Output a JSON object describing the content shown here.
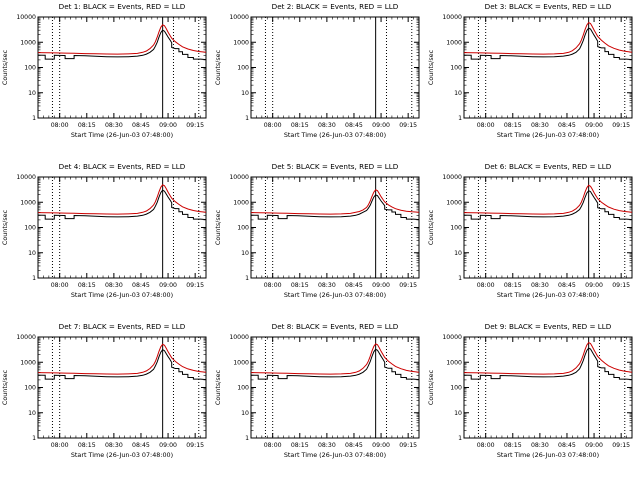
{
  "page": {
    "background": "#ffffff",
    "description": "3x3 grid of detector count-rate light curves, log y-axis, black Events and red LLD traces with a flare peak near 09:00"
  },
  "chart_data": {
    "type": "line",
    "grid": "3x3",
    "title": "",
    "ylabel": "Counts/sec",
    "xlabel": "Start Time (26-Jun-03 07:48:00)",
    "colors": {
      "events": "#000000",
      "lld": "#cc0000",
      "axis": "#000000"
    },
    "x_axis": {
      "start_minute": 0,
      "end_minute": 93,
      "tick_minutes": [
        12,
        27,
        42,
        57,
        72,
        87
      ],
      "tick_labels": [
        "08:00",
        "08:15",
        "08:30",
        "08:45",
        "09:00",
        "09:15"
      ]
    },
    "y_axis": {
      "scale": "log",
      "ylim": [
        1,
        10000
      ],
      "tick_values": [
        1,
        10,
        100,
        1000,
        10000
      ],
      "tick_labels": [
        "1",
        "10",
        "100",
        "1000",
        "10000"
      ]
    },
    "vlines": [
      {
        "minute": 8,
        "style": "dotted"
      },
      {
        "minute": 12,
        "style": "dotted"
      },
      {
        "minute": 69,
        "style": "solid"
      },
      {
        "minute": 75,
        "style": "dotted"
      },
      {
        "minute": 89,
        "style": "dotted"
      }
    ],
    "series_library": {
      "events": {
        "name": "Events",
        "color": "#000000",
        "points": [
          [
            0,
            310
          ],
          [
            3,
            305
          ],
          [
            4,
            305
          ],
          [
            4,
            215
          ],
          [
            9,
            215
          ],
          [
            9,
            305
          ],
          [
            14,
            300
          ],
          [
            15,
            300
          ],
          [
            15,
            225
          ],
          [
            20,
            225
          ],
          [
            20,
            300
          ],
          [
            26,
            290
          ],
          [
            32,
            278
          ],
          [
            38,
            268
          ],
          [
            44,
            262
          ],
          [
            50,
            268
          ],
          [
            55,
            282
          ],
          [
            58,
            305
          ],
          [
            60,
            340
          ],
          [
            62,
            400
          ],
          [
            64,
            520
          ],
          [
            65,
            700
          ],
          [
            66,
            1000
          ],
          [
            67,
            1600
          ],
          [
            68,
            2400
          ],
          [
            69,
            3000
          ],
          [
            70,
            2750
          ],
          [
            71,
            2100
          ],
          [
            72,
            1600
          ],
          [
            73,
            1250
          ],
          [
            74,
            950
          ],
          [
            74,
            620
          ],
          [
            76,
            560
          ],
          [
            78,
            560
          ],
          [
            78,
            420
          ],
          [
            80,
            420
          ],
          [
            80,
            330
          ],
          [
            83,
            330
          ],
          [
            83,
            250
          ],
          [
            86,
            250
          ],
          [
            86,
            215
          ],
          [
            90,
            215
          ],
          [
            93,
            205
          ]
        ]
      },
      "lld": {
        "name": "LLD",
        "color": "#cc0000",
        "points": [
          [
            0,
            390
          ],
          [
            5,
            385
          ],
          [
            10,
            378
          ],
          [
            15,
            372
          ],
          [
            20,
            365
          ],
          [
            26,
            356
          ],
          [
            32,
            348
          ],
          [
            38,
            342
          ],
          [
            44,
            338
          ],
          [
            50,
            345
          ],
          [
            55,
            362
          ],
          [
            58,
            400
          ],
          [
            60,
            450
          ],
          [
            62,
            560
          ],
          [
            64,
            780
          ],
          [
            65,
            1050
          ],
          [
            66,
            1600
          ],
          [
            67,
            2600
          ],
          [
            68,
            3900
          ],
          [
            69,
            4900
          ],
          [
            70,
            4500
          ],
          [
            71,
            3400
          ],
          [
            72,
            2500
          ],
          [
            73,
            1900
          ],
          [
            74,
            1450
          ],
          [
            76,
            1050
          ],
          [
            78,
            820
          ],
          [
            80,
            660
          ],
          [
            83,
            540
          ],
          [
            86,
            470
          ],
          [
            89,
            430
          ],
          [
            93,
            400
          ]
        ]
      }
    },
    "panels": [
      {
        "det": "Det 1",
        "title": "Det 1: BLACK = Events, RED = LLD",
        "has_data": true,
        "peak_scale": 1.0
      },
      {
        "det": "Det 2",
        "title": "Det 2: BLACK = Events, RED = LLD",
        "has_data": false,
        "peak_scale": 0
      },
      {
        "det": "Det 3",
        "title": "Det 3: BLACK = Events, RED = LLD",
        "has_data": true,
        "peak_scale": 1.25
      },
      {
        "det": "Det 4",
        "title": "Det 4: BLACK = Events, RED = LLD",
        "has_data": true,
        "peak_scale": 1.0
      },
      {
        "det": "Det 5",
        "title": "Det 5: BLACK = Events, RED = LLD",
        "has_data": true,
        "peak_scale": 0.6
      },
      {
        "det": "Det 6",
        "title": "Det 6: BLACK = Events, RED = LLD",
        "has_data": true,
        "peak_scale": 0.95
      },
      {
        "det": "Det 7",
        "title": "Det 7: BLACK = Events, RED = LLD",
        "has_data": true,
        "peak_scale": 1.05
      },
      {
        "det": "Det 8",
        "title": "Det 8: BLACK = Events, RED = LLD",
        "has_data": true,
        "peak_scale": 1.1
      },
      {
        "det": "Det 9",
        "title": "Det 9: BLACK = Events, RED = LLD",
        "has_data": true,
        "peak_scale": 1.25
      }
    ]
  }
}
